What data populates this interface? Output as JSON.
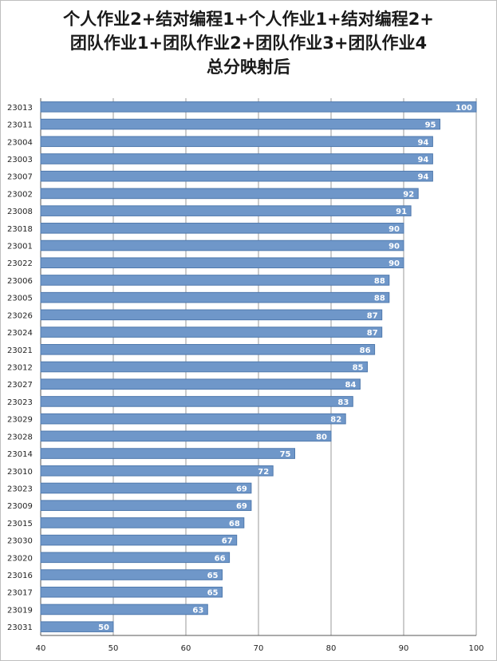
{
  "chart_data": {
    "type": "bar",
    "orientation": "horizontal",
    "title_lines": [
      "个人作业2+结对编程1+个人作业1+结对编程2+",
      "团队作业1+团队作业2+团队作业3+团队作业4",
      "总分映射后"
    ],
    "categories": [
      "23013",
      "23011",
      "23004",
      "23003",
      "23007",
      "23002",
      "23008",
      "23018",
      "23001",
      "23022",
      "23006",
      "23005",
      "23026",
      "23024",
      "23021",
      "23012",
      "23027",
      "23023",
      "23029",
      "23028",
      "23014",
      "23010",
      "23023",
      "23009",
      "23015",
      "23030",
      "23020",
      "23016",
      "23017",
      "23019",
      "23031"
    ],
    "values": [
      100,
      95,
      94,
      94,
      94,
      92,
      91,
      90,
      90,
      90,
      88,
      88,
      87,
      87,
      86,
      85,
      84,
      83,
      82,
      80,
      75,
      72,
      69,
      69,
      68,
      67,
      66,
      65,
      65,
      63,
      50
    ],
    "xlim": [
      40,
      100
    ],
    "xticks": [
      40,
      50,
      60,
      70,
      80,
      90,
      100
    ],
    "grid": "vertical",
    "legend": "none",
    "bar_color": "#6f97c9",
    "bar_edge_color": "#4f79ad",
    "label_color": "#ffffff"
  }
}
